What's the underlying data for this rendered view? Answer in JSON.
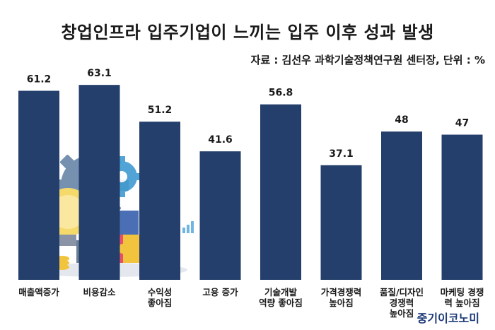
{
  "title": "창업인프라 입주기업이 느끼는 입주 이후 성과 발생",
  "source": "자료 : 김선우 과학기술정책연구원 센터장, 단위 : %",
  "brand": "중기이코노미",
  "colors": {
    "bar": "#243f6b",
    "text": "#1a1a1a"
  },
  "chart_data": {
    "type": "bar",
    "title": "창업인프라 입주기업이 느끼는 입주 이후 성과 발생",
    "xlabel": "",
    "ylabel": "",
    "unit": "%",
    "ylim": [
      0,
      70
    ],
    "grid": false,
    "categories": [
      [
        "매출액증가"
      ],
      [
        "비용감소"
      ],
      [
        "수익성",
        "좋아짐"
      ],
      [
        "고용 증가"
      ],
      [
        "기술개발",
        "역량 좋아짐"
      ],
      [
        "가격경쟁력",
        "높아짐"
      ],
      [
        "품질/디자인",
        "경쟁력",
        "높아짐"
      ],
      [
        "마케팅 경쟁",
        "력 높아짐"
      ]
    ],
    "values": [
      61.2,
      63.1,
      51.2,
      41.6,
      56.8,
      37.1,
      48,
      47
    ]
  }
}
